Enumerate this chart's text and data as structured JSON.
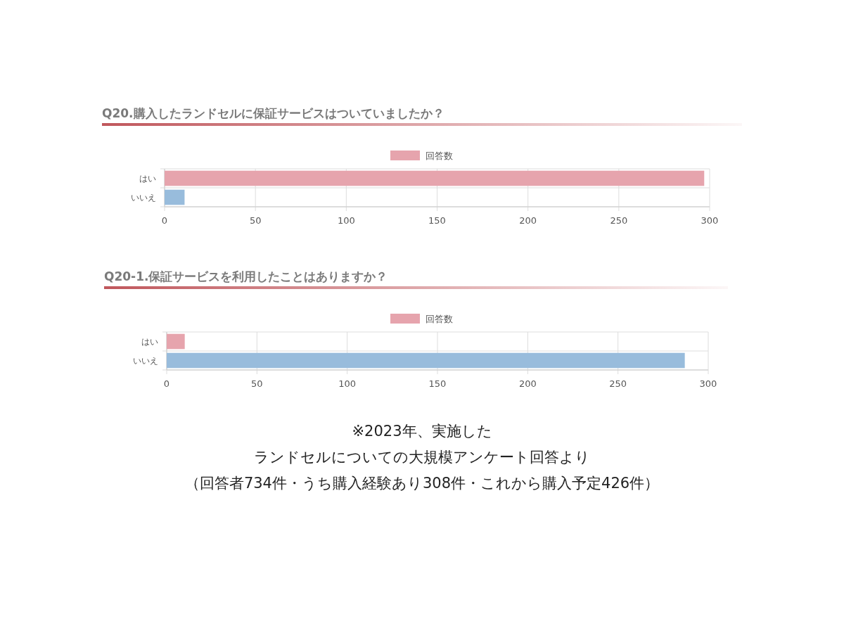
{
  "chart_data": [
    {
      "type": "bar",
      "orientation": "horizontal",
      "title": "Q20.購入したランドセルに保証サービスはついていましたか？",
      "categories": [
        "はい",
        "いいえ"
      ],
      "series": [
        {
          "name": "回答数",
          "color": "#e6a4ad",
          "colors": [
            "#e6a4ad",
            "#98bcdc"
          ],
          "values": [
            297,
            11
          ]
        }
      ],
      "xlim": [
        0,
        300
      ],
      "xticks": [
        0,
        50,
        100,
        150,
        200,
        250,
        300
      ],
      "grid": true,
      "legend": "top"
    },
    {
      "type": "bar",
      "orientation": "horizontal",
      "title": "Q20-1.保証サービスを利用したことはありますか？",
      "categories": [
        "はい",
        "いいえ"
      ],
      "series": [
        {
          "name": "回答数",
          "color": "#e6a4ad",
          "colors": [
            "#e6a4ad",
            "#98bcdc"
          ],
          "values": [
            10,
            287
          ]
        }
      ],
      "xlim": [
        0,
        300
      ],
      "xticks": [
        0,
        50,
        100,
        150,
        200,
        250,
        300
      ],
      "grid": true,
      "legend": "top",
      "annotations": [
        "※2023年、実施した",
        "ランドセルについての大規模アンケート回答より",
        "（回答者734件・うち購入経験あり308件・これから購入予定426件）"
      ]
    }
  ]
}
